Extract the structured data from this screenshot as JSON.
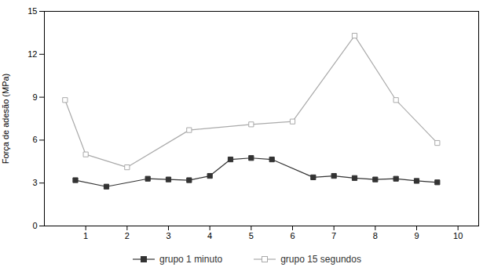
{
  "chart_data": {
    "type": "line",
    "ylabel": "Força de adesão (MPa)",
    "series": [
      {
        "name": "grupo 1 minuto",
        "color": "#333333",
        "marker": "square",
        "x": [
          0.75,
          1.5,
          2.5,
          3.0,
          3.5,
          4.0,
          4.5,
          5.0,
          5.5,
          6.5,
          7.0,
          7.5,
          8.0,
          8.5,
          9.0,
          9.5
        ],
        "values": [
          3.2,
          2.75,
          3.3,
          3.25,
          3.2,
          3.5,
          4.65,
          4.75,
          4.65,
          3.4,
          3.5,
          3.35,
          3.25,
          3.3,
          3.15,
          3.05
        ]
      },
      {
        "name": "grupo 15 segundos",
        "color": "#aaaaaa",
        "marker": "square-open",
        "x": [
          0.5,
          1.0,
          2.0,
          3.5,
          5.0,
          6.0,
          7.5,
          8.5,
          9.5
        ],
        "values": [
          8.8,
          5.0,
          4.1,
          6.7,
          7.1,
          7.3,
          13.3,
          8.8,
          5.8
        ]
      }
    ],
    "xlim": [
      0,
      10.5
    ],
    "xticks": [
      1,
      2,
      3,
      4,
      5,
      6,
      7,
      8,
      9,
      10
    ],
    "ylim": [
      0,
      15
    ],
    "yticks": [
      0,
      3,
      6,
      9,
      12,
      15
    ],
    "grid": false
  }
}
